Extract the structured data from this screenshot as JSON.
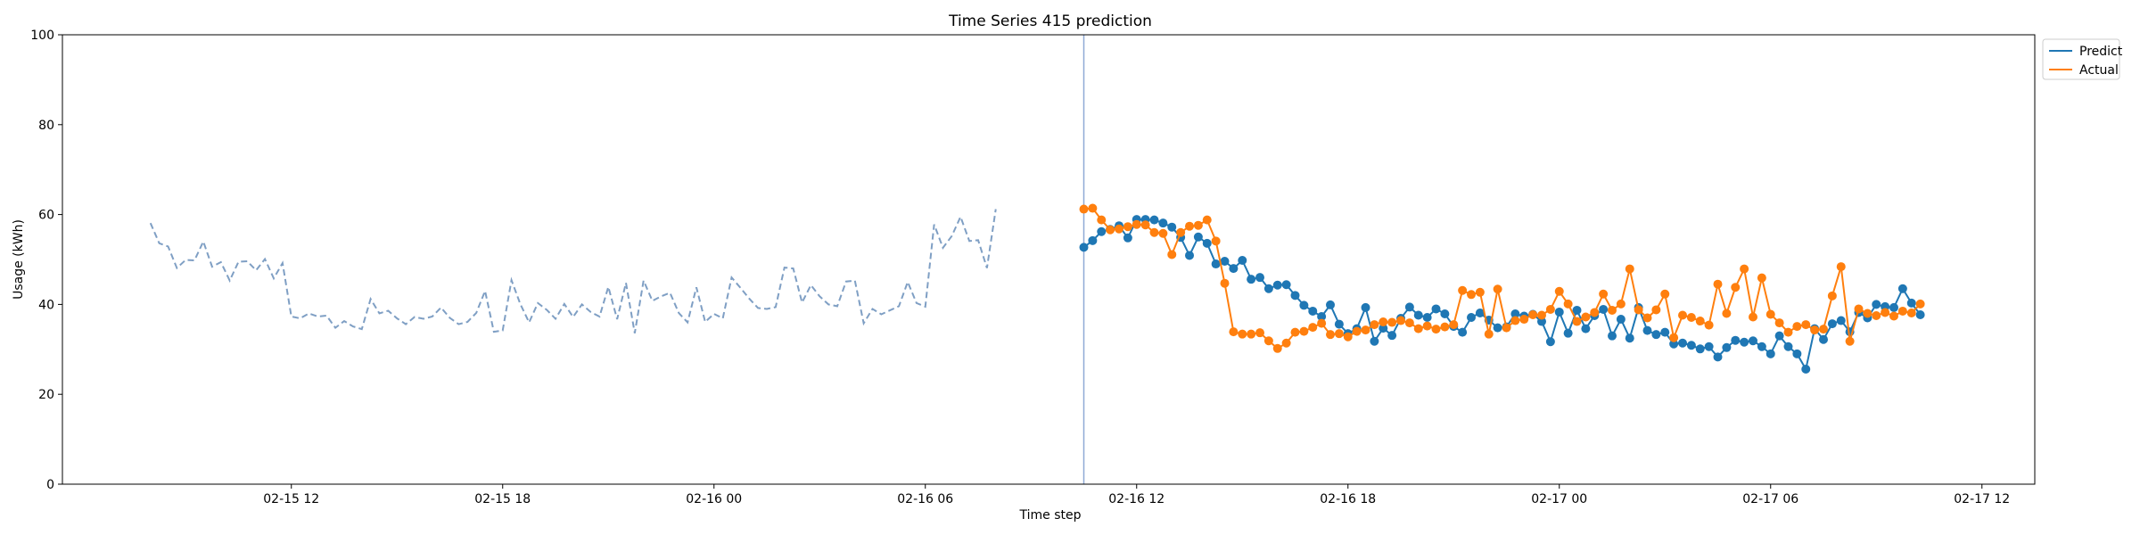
{
  "chart_data": {
    "type": "line",
    "title": "Time Series 415 prediction",
    "xlabel": "Time step",
    "ylabel": "Usage (kWh)",
    "ylim": [
      0,
      100
    ],
    "yticks": [
      0,
      20,
      40,
      60,
      80,
      100
    ],
    "x_unit_note": "hourly time steps, tick labels show MM-DD HH",
    "xlim": [
      "2022-02-15 05:30",
      "2022-02-17 13:30"
    ],
    "xticks": [
      "02-15 12",
      "02-15 18",
      "02-16 00",
      "02-16 06",
      "02-16 12",
      "02-16 18",
      "02-17 00",
      "02-17 06",
      "02-17 12"
    ],
    "xtick_times": [
      "2022-02-15 12:00",
      "2022-02-15 18:00",
      "2022-02-16 00:00",
      "2022-02-16 06:00",
      "2022-02-16 12:00",
      "2022-02-16 18:00",
      "2022-02-17 00:00",
      "2022-02-17 06:00",
      "2022-02-17 12:00"
    ],
    "grid": false,
    "legend_position": "upper right, outside plot",
    "forecast_start": "2022-02-16 10:30",
    "history": {
      "start": "2022-02-15 08:00",
      "step_minutes": 15,
      "color": "#7f9fc4",
      "style": "dashed",
      "values": [
        58.1,
        53.6,
        52.9,
        48.1,
        49.9,
        49.8,
        54.0,
        48.4,
        49.4,
        45.3,
        49.5,
        49.6,
        47.6,
        50.1,
        45.8,
        49.2,
        37.3,
        36.9,
        38.0,
        37.3,
        37.5,
        34.8,
        36.3,
        35.1,
        34.5,
        41.2,
        38.0,
        38.6,
        36.9,
        35.6,
        37.2,
        36.8,
        37.3,
        39.3,
        37.0,
        35.6,
        36.1,
        38.1,
        43.0,
        33.9,
        34.2,
        45.4,
        40.1,
        36.0,
        40.3,
        38.8,
        36.8,
        40.1,
        37.2,
        40.0,
        38.3,
        37.3,
        43.9,
        36.7,
        44.8,
        33.6,
        45.3,
        40.8,
        41.8,
        42.6,
        38.1,
        36.0,
        43.8,
        36.1,
        37.9,
        36.9,
        46.0,
        43.7,
        41.3,
        39.2,
        39.0,
        39.4,
        48.2,
        48.0,
        40.4,
        44.3,
        41.8,
        40.0,
        39.6,
        45.1,
        45.3,
        35.8,
        39.0,
        37.8,
        38.7,
        39.6,
        45.0,
        40.3,
        39.5,
        57.8,
        52.6,
        55.2,
        59.5,
        54.1,
        54.3,
        48.1,
        61.2
      ]
    },
    "series": [
      {
        "name": "Predict",
        "color": "#1f77b4",
        "start": "2022-02-16 10:30",
        "step_minutes": 15,
        "values": [
          52.7,
          54.2,
          56.2,
          56.7,
          57.5,
          54.8,
          58.9,
          58.9,
          58.8,
          58.1,
          57.2,
          54.9,
          50.9,
          55.0,
          53.6,
          49.0,
          49.6,
          48.0,
          49.8,
          45.6,
          46.0,
          43.5,
          44.3,
          44.4,
          42.0,
          39.8,
          38.5,
          37.3,
          39.9,
          35.6,
          33.5,
          34.6,
          39.3,
          31.8,
          34.7,
          33.1,
          36.9,
          39.4,
          37.6,
          37.1,
          39.0,
          37.9,
          35.1,
          33.8,
          37.1,
          38.1,
          36.5,
          34.8,
          35.0,
          37.9,
          37.4,
          37.8,
          36.2,
          31.7,
          38.3,
          33.6,
          38.7,
          34.6,
          37.5,
          38.9,
          33.0,
          36.7,
          32.5,
          39.3,
          34.2,
          33.3,
          33.8,
          31.2,
          31.4,
          30.9,
          30.1,
          30.6,
          28.3,
          30.4,
          32.0,
          31.6,
          31.9,
          30.6,
          29.0,
          33.0,
          30.6,
          29.0,
          25.6,
          34.6,
          32.2,
          35.7,
          36.4,
          33.9,
          38.2,
          37.0,
          40.0,
          39.5,
          39.3,
          43.5,
          40.3,
          37.7
        ]
      },
      {
        "name": "Actual",
        "color": "#ff7f0e",
        "start": "2022-02-16 10:30",
        "step_minutes": 15,
        "values": [
          61.2,
          61.4,
          58.8,
          56.6,
          56.8,
          57.3,
          57.8,
          57.7,
          56.0,
          55.8,
          51.1,
          56.0,
          57.4,
          57.6,
          58.8,
          54.1,
          44.7,
          33.9,
          33.4,
          33.4,
          33.7,
          31.9,
          30.2,
          31.4,
          33.8,
          34.0,
          34.9,
          35.8,
          33.3,
          33.5,
          32.8,
          34.0,
          34.3,
          35.5,
          36.1,
          36.0,
          36.4,
          35.9,
          34.6,
          35.2,
          34.5,
          35.0,
          35.5,
          43.1,
          42.2,
          42.7,
          33.4,
          43.4,
          34.8,
          36.4,
          36.7,
          37.7,
          37.6,
          38.9,
          42.9,
          40.1,
          36.2,
          37.2,
          38.2,
          42.3,
          38.7,
          40.1,
          47.9,
          38.8,
          37.0,
          38.8,
          42.3,
          32.6,
          37.6,
          37.1,
          36.3,
          35.4,
          44.5,
          38.0,
          43.8,
          47.9,
          37.2,
          45.9,
          37.8,
          35.9,
          33.8,
          35.1,
          35.5,
          34.3,
          34.5,
          41.9,
          48.4,
          31.8,
          39.0,
          38.0,
          37.5,
          38.2,
          37.4,
          38.5,
          38.1,
          40.1
        ]
      }
    ]
  }
}
